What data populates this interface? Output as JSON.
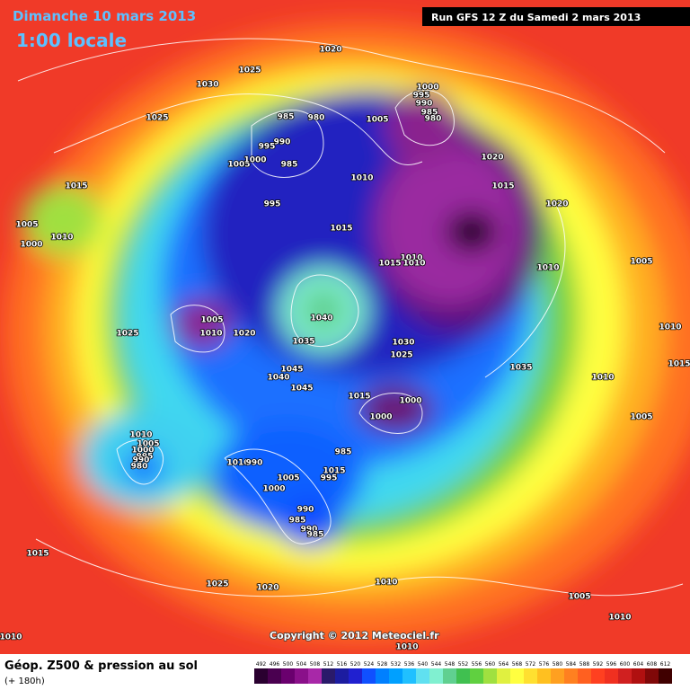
{
  "header": {
    "date": "Dimanche 10 mars 2013",
    "time": "1:00 locale",
    "run": "Run GFS 12 Z du Samedi 2 mars 2013"
  },
  "copyright": "Copyright © 2012 Meteociel.fr",
  "footer": {
    "title": "Géop. Z500 & pression au sol",
    "lead": "(+ 180h)"
  },
  "isobar_labels": [
    "1020",
    "1025",
    "1030",
    "1025",
    "1000",
    "995",
    "990",
    "985",
    "980",
    "985",
    "980",
    "990",
    "995",
    "985",
    "1005",
    "1000",
    "1005",
    "1010",
    "1020",
    "1015",
    "1020",
    "1015",
    "995",
    "1005",
    "1010",
    "1000",
    "1015",
    "1010",
    "1015",
    "1010",
    "1010",
    "1005",
    "1005",
    "1010",
    "1020",
    "1040",
    "1025",
    "1035",
    "1030",
    "1025",
    "1010",
    "1015",
    "1035",
    "1045",
    "1040",
    "1045",
    "1015",
    "1000",
    "1000",
    "1010",
    "1005",
    "1010",
    "1005",
    "1000",
    "995",
    "990",
    "985",
    "1010",
    "990",
    "1015",
    "1005",
    "995",
    "1000",
    "990",
    "985",
    "990",
    "985",
    "980",
    "1015",
    "1025",
    "1020",
    "1010",
    "1005",
    "1010",
    "1010",
    "1010"
  ],
  "scale": {
    "values": [
      492,
      496,
      500,
      504,
      508,
      512,
      516,
      520,
      524,
      528,
      532,
      536,
      540,
      544,
      548,
      552,
      556,
      560,
      564,
      568,
      572,
      576,
      580,
      584,
      588,
      592,
      596,
      600,
      604,
      608,
      612
    ],
    "colors": [
      "#2a0030",
      "#4a0050",
      "#6a006e",
      "#8a108a",
      "#a828a8",
      "#2a1a6a",
      "#1c1ca0",
      "#2020d0",
      "#1050ff",
      "#0080ff",
      "#00a0ff",
      "#20c0ff",
      "#60e0f0",
      "#80f0d0",
      "#60d090",
      "#40c050",
      "#60d040",
      "#a0e040",
      "#e0f040",
      "#ffff40",
      "#ffe030",
      "#ffc020",
      "#ffa020",
      "#ff8020",
      "#ff6020",
      "#ff4020",
      "#f03020",
      "#d02020",
      "#b01010",
      "#800808",
      "#400000"
    ]
  }
}
